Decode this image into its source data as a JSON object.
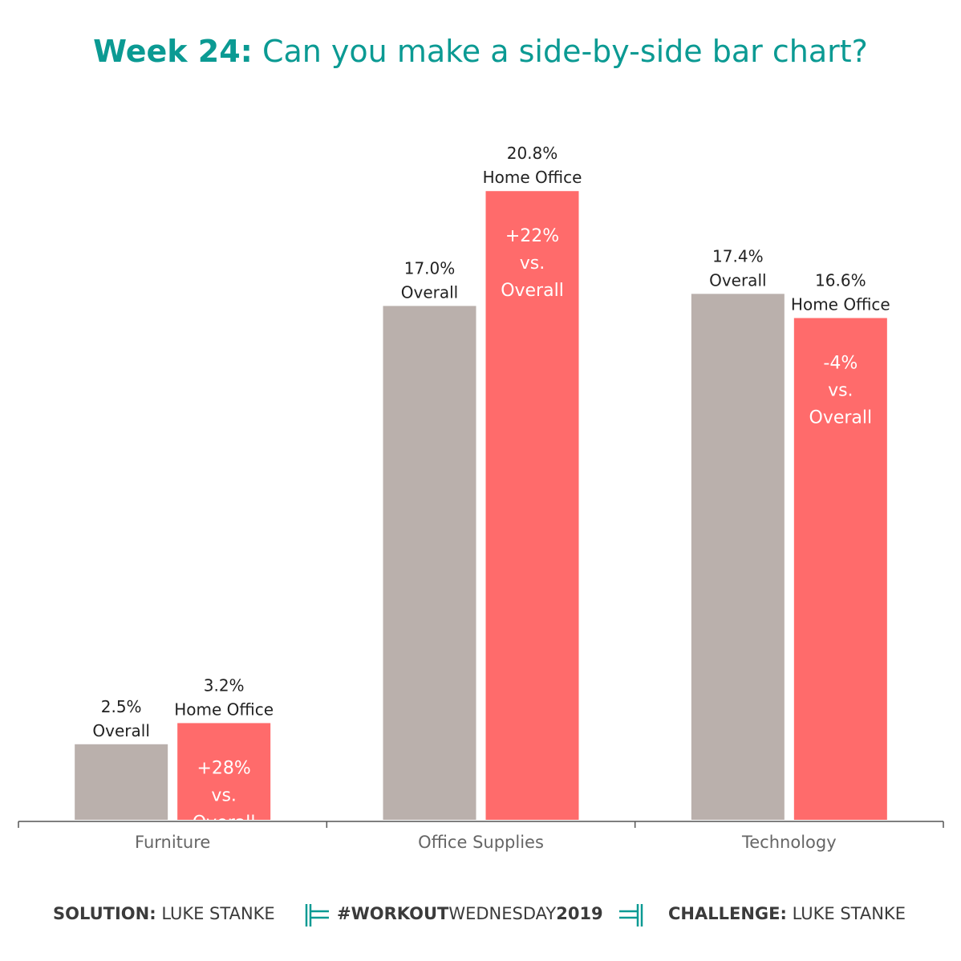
{
  "header": {
    "title_bold": "Week 24:",
    "title_rest": "Can you make a side-by-side bar chart?"
  },
  "chart_data": {
    "type": "bar",
    "categories": [
      "Furniture",
      "Office Supplies",
      "Technology"
    ],
    "series": [
      {
        "name": "Overall",
        "values": [
          2.5,
          17.0,
          17.4
        ],
        "color": "#bab0ac"
      },
      {
        "name": "Home Office",
        "values": [
          3.2,
          20.8,
          16.6
        ],
        "color": "#ff6b6b"
      }
    ],
    "value_labels": {
      "overall": [
        "2.5%",
        "17.0%",
        "17.4%"
      ],
      "home_office": [
        "3.2%",
        "20.8%",
        "16.6%"
      ]
    },
    "series_labels": {
      "overall": "Overall",
      "home_office": "Home Office"
    },
    "comparison_labels": [
      [
        "+28%",
        "vs.",
        "Overall"
      ],
      [
        "+22%",
        "vs.",
        "Overall"
      ],
      [
        "-4%",
        "vs.",
        "Overall"
      ]
    ],
    "ylim": [
      0,
      22
    ],
    "grid": false,
    "legend": "none",
    "colors": {
      "overall": "#bab0ac",
      "home_office": "#ff6b6b",
      "inner_label": "#ffffff",
      "axis": "#555555",
      "tick_label": "#666666"
    }
  },
  "footer": {
    "solution_label": "SOLUTION:",
    "solution_name": "LUKE STANKE",
    "hashtag_bold": "#WORKOUT",
    "hashtag_thin": "WEDNESDAY",
    "hashtag_year": "2019",
    "challenge_label": "CHALLENGE:",
    "challenge_name": "LUKE STANKE",
    "accent": "#0b9a93"
  }
}
